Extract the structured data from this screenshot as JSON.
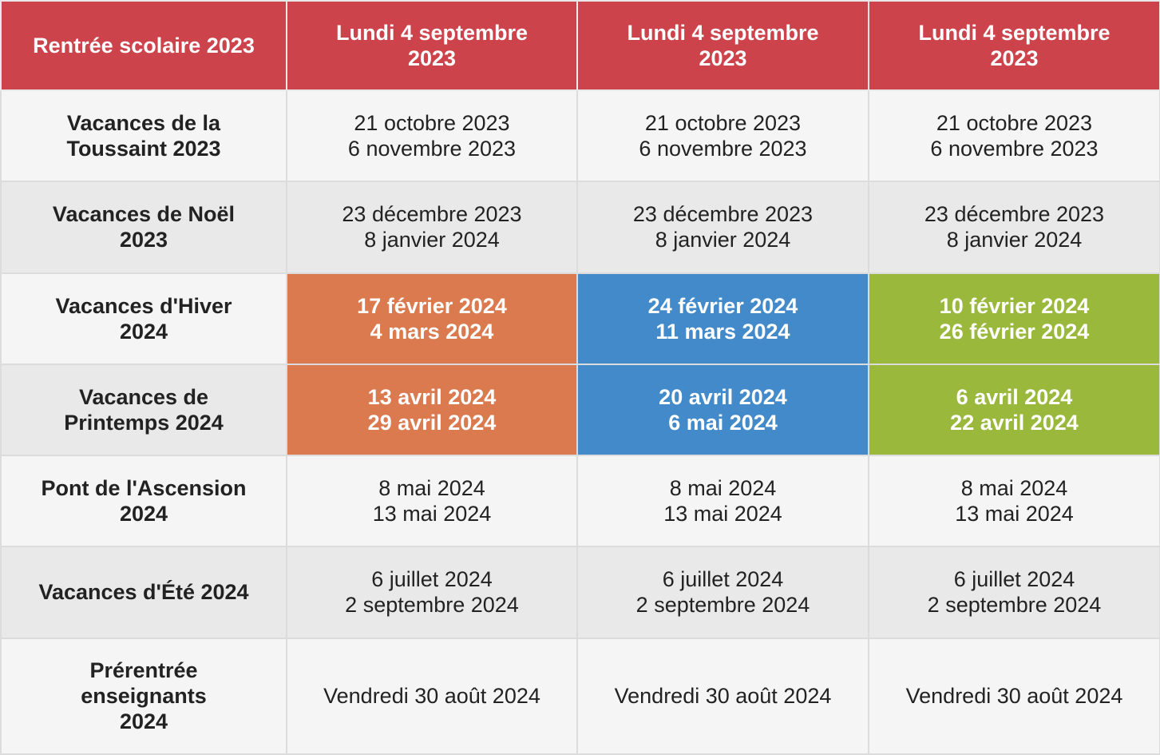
{
  "colors": {
    "header": "#cd434b",
    "zone_a": "#db7a4f",
    "zone_b": "#438acb",
    "zone_c": "#99b83c",
    "row_light": "#f5f5f5",
    "row_dark": "#e9e9e9"
  },
  "header": {
    "corner": "Rentrée scolaire 2023",
    "zones": [
      [
        "Lundi 4 septembre",
        "2023"
      ],
      [
        "Lundi 4 septembre",
        "2023"
      ],
      [
        "Lundi 4 septembre",
        "2023"
      ]
    ]
  },
  "rows": [
    {
      "label": [
        "Vacances de la",
        "Toussaint 2023"
      ],
      "cells": [
        [
          "21 octobre 2023",
          "6 novembre 2023"
        ],
        [
          "21 octobre 2023",
          "6 novembre 2023"
        ],
        [
          "21 octobre 2023",
          "6 novembre 2023"
        ]
      ]
    },
    {
      "label": [
        "Vacances de Noël",
        "2023"
      ],
      "cells": [
        [
          "23 décembre 2023",
          "8 janvier 2024"
        ],
        [
          "23 décembre 2023",
          "8 janvier 2024"
        ],
        [
          "23 décembre 2023",
          "8 janvier 2024"
        ]
      ]
    },
    {
      "label": [
        "Vacances d'Hiver",
        "2024"
      ],
      "cells": [
        [
          "17 février 2024",
          "4 mars 2024"
        ],
        [
          "24 février 2024",
          "11 mars 2024"
        ],
        [
          "10 février 2024",
          "26 février 2024"
        ]
      ]
    },
    {
      "label": [
        "Vacances de",
        "Printemps 2024"
      ],
      "cells": [
        [
          "13 avril 2024",
          "29 avril 2024"
        ],
        [
          "20 avril 2024",
          "6 mai 2024"
        ],
        [
          "6 avril 2024",
          "22 avril 2024"
        ]
      ]
    },
    {
      "label": [
        "Pont de l'Ascension",
        "2024"
      ],
      "cells": [
        [
          "8 mai 2024",
          "13 mai 2024"
        ],
        [
          "8 mai 2024",
          "13 mai 2024"
        ],
        [
          "8 mai 2024",
          "13 mai 2024"
        ]
      ]
    },
    {
      "label": [
        "Vacances d'Été 2024"
      ],
      "cells": [
        [
          "6 juillet 2024",
          "2 septembre 2024"
        ],
        [
          "6 juillet 2024",
          "2 septembre 2024"
        ],
        [
          "6 juillet 2024",
          "2 septembre 2024"
        ]
      ]
    },
    {
      "label": [
        "Prérentrée",
        "enseignants",
        "2024"
      ],
      "cells": [
        [
          "Vendredi 30 août 2024"
        ],
        [
          "Vendredi 30 août 2024"
        ],
        [
          "Vendredi 30 août 2024"
        ]
      ]
    }
  ]
}
